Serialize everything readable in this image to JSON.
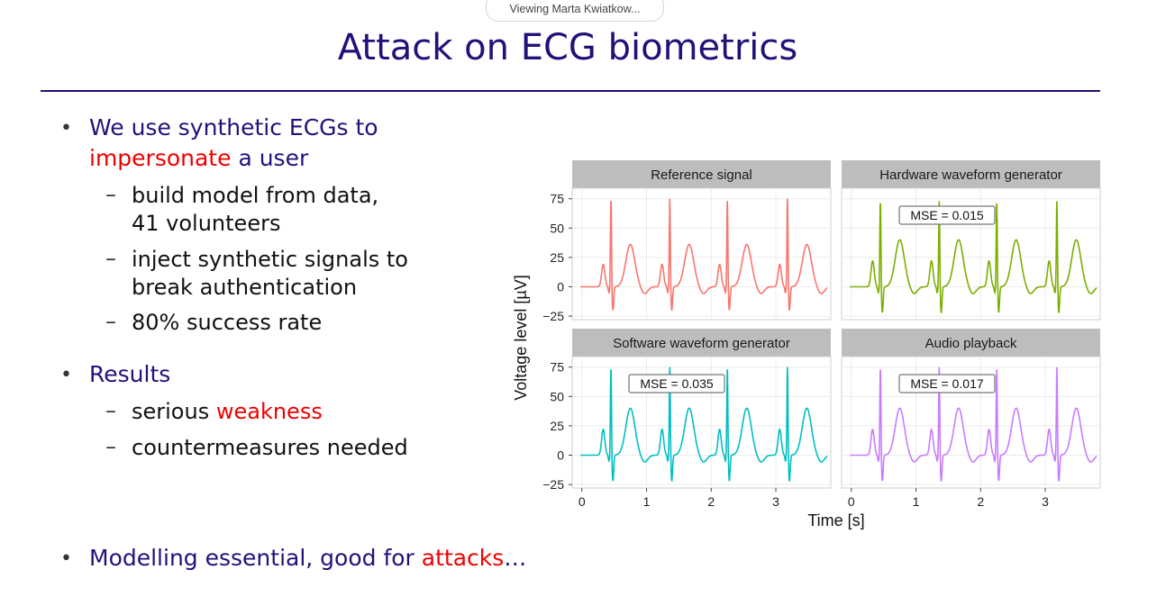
{
  "viewer": {
    "label": "Viewing Marta Kwiatkow..."
  },
  "slide": {
    "title": "Attack on ECG biometrics",
    "bullet1": {
      "text_a": "We use synthetic ECGs to",
      "text_red": "impersonate",
      "text_b": " a user"
    },
    "sub1": [
      {
        "line1": "build model from data,",
        "line2": "41 volunteers"
      },
      {
        "line1": "inject synthetic signals to",
        "line2": "break authentication"
      },
      {
        "line1": "80% success rate"
      }
    ],
    "bullet2": {
      "text": "Results"
    },
    "sub2": [
      {
        "text_a": "serious ",
        "text_red": "weakness"
      },
      {
        "text_a": "countermeasures needed"
      }
    ],
    "bullet3": {
      "text_a": "Modelling essential, good for ",
      "text_red": "attacks",
      "text_b": "…"
    }
  },
  "chart_data": {
    "type": "line",
    "xlabel": "Time [s]",
    "ylabel": "Voltage level [µV]",
    "xlim": [
      -0.15,
      3.85
    ],
    "ylim": [
      -28,
      84
    ],
    "xticks": [
      0,
      1,
      2,
      3
    ],
    "yticks": [
      -25,
      0,
      25,
      50,
      75
    ],
    "grid": true,
    "panels": [
      {
        "title": "Reference signal",
        "color": "#f8766d",
        "mse": null,
        "beats": [
          0.45,
          1.36,
          2.25,
          3.18
        ],
        "r_amp": 76,
        "s_amp": -20,
        "t_amp": 36,
        "p_amp": 19
      },
      {
        "title": "Hardware waveform generator",
        "color": "#7cae00",
        "mse": "MSE =  0.015",
        "beats": [
          0.45,
          1.36,
          2.25,
          3.18
        ],
        "r_amp": 74,
        "s_amp": -22,
        "t_amp": 40,
        "p_amp": 22
      },
      {
        "title": "Software waveform generator",
        "color": "#00bfc4",
        "mse": "MSE =  0.035",
        "beats": [
          0.45,
          1.36,
          2.25,
          3.18
        ],
        "r_amp": 76,
        "s_amp": -22,
        "t_amp": 40,
        "p_amp": 22
      },
      {
        "title": "Audio playback",
        "color": "#c77cff",
        "mse": "MSE =  0.017",
        "beats": [
          0.45,
          1.36,
          2.25,
          3.18
        ],
        "r_amp": 76,
        "s_amp": -22,
        "t_amp": 40,
        "p_amp": 22
      }
    ]
  }
}
